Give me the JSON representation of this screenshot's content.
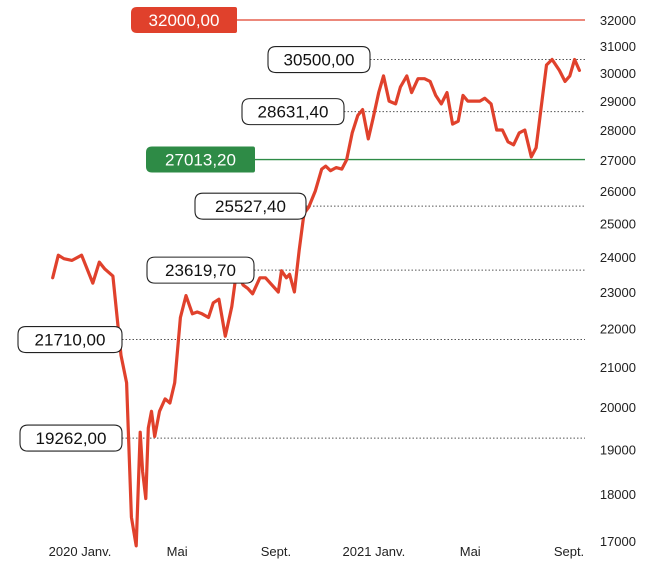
{
  "chart_data": {
    "type": "line",
    "title": "",
    "xlabel": "",
    "ylabel": "",
    "ylim": [
      16800,
      32200
    ],
    "y_scale": "log",
    "yticks": [
      17000,
      18000,
      19000,
      20000,
      21000,
      22000,
      23000,
      24000,
      25000,
      26000,
      27000,
      28000,
      29000,
      30000,
      31000,
      32000
    ],
    "ytick_labels": [
      "17000",
      "18000",
      "19000",
      "20000",
      "21000",
      "22000",
      "23000",
      "24000",
      "25000",
      "26000",
      "27000",
      "28000",
      "29000",
      "30000",
      "31000",
      "32000"
    ],
    "xlim": [
      "2019-11-25",
      "2021-09-21"
    ],
    "xticks": [
      {
        "date": "2020-01-01",
        "label": "2020 Janv."
      },
      {
        "date": "2020-05-01",
        "label": "Mai"
      },
      {
        "date": "2020-09-01",
        "label": "Sept."
      },
      {
        "date": "2021-01-01",
        "label": "2021 Janv."
      },
      {
        "date": "2021-05-01",
        "label": "Mai"
      },
      {
        "date": "2021-09-01",
        "label": "Sept."
      }
    ],
    "series": [
      {
        "name": "",
        "color": "#e0412c",
        "x": [
          "2019-11-28",
          "2019-12-05",
          "2019-12-12",
          "2019-12-22",
          "2020-01-03",
          "2020-01-17",
          "2020-01-25",
          "2020-02-01",
          "2020-02-11",
          "2020-02-21",
          "2020-02-28",
          "2020-03-05",
          "2020-03-11",
          "2020-03-16",
          "2020-03-19",
          "2020-03-23",
          "2020-03-26",
          "2020-03-30",
          "2020-04-03",
          "2020-04-09",
          "2020-04-16",
          "2020-04-22",
          "2020-04-28",
          "2020-05-05",
          "2020-05-12",
          "2020-05-20",
          "2020-05-26",
          "2020-06-01",
          "2020-06-09",
          "2020-06-15",
          "2020-06-22",
          "2020-06-30",
          "2020-07-08",
          "2020-07-14",
          "2020-07-22",
          "2020-07-28",
          "2020-08-03",
          "2020-08-12",
          "2020-08-19",
          "2020-08-27",
          "2020-09-04",
          "2020-09-08",
          "2020-09-14",
          "2020-09-18",
          "2020-09-24",
          "2020-09-30",
          "2020-10-06",
          "2020-10-12",
          "2020-10-20",
          "2020-10-28",
          "2020-11-02",
          "2020-11-08",
          "2020-11-15",
          "2020-11-22",
          "2020-11-28",
          "2020-12-05",
          "2020-12-12",
          "2020-12-18",
          "2020-12-25",
          "2020-12-31",
          "2021-01-07",
          "2021-01-13",
          "2021-01-20",
          "2021-01-28",
          "2021-02-03",
          "2021-02-11",
          "2021-02-17",
          "2021-02-25",
          "2021-03-05",
          "2021-03-12",
          "2021-03-19",
          "2021-03-26",
          "2021-04-02",
          "2021-04-09",
          "2021-04-16",
          "2021-04-22",
          "2021-04-28",
          "2021-05-07",
          "2021-05-13",
          "2021-05-19",
          "2021-05-27",
          "2021-06-03",
          "2021-06-10",
          "2021-06-17",
          "2021-06-24",
          "2021-07-01",
          "2021-07-08",
          "2021-07-16",
          "2021-07-22",
          "2021-07-28",
          "2021-08-04",
          "2021-08-11",
          "2021-08-20",
          "2021-08-27",
          "2021-09-02",
          "2021-09-08",
          "2021-09-14"
        ],
        "y": [
          23400,
          24050,
          23950,
          23900,
          24050,
          23250,
          23850,
          23650,
          23450,
          21300,
          20600,
          17500,
          16900,
          19400,
          18500,
          17900,
          19500,
          19900,
          19300,
          19900,
          20200,
          20100,
          20600,
          22300,
          22900,
          22400,
          22450,
          22400,
          22300,
          22700,
          22800,
          21800,
          22600,
          23600,
          23200,
          23100,
          22950,
          23400,
          23400,
          23200,
          23000,
          23600,
          23400,
          23500,
          23000,
          24200,
          25300,
          25500,
          26000,
          26700,
          26800,
          26650,
          26750,
          26700,
          27000,
          27900,
          28500,
          28700,
          27700,
          28400,
          29300,
          29900,
          29000,
          28900,
          29500,
          29900,
          29300,
          29800,
          29800,
          29700,
          29200,
          28900,
          29300,
          28200,
          28300,
          29200,
          29000,
          29000,
          29000,
          29100,
          28900,
          28000,
          28000,
          27600,
          27500,
          27900,
          28000,
          27100,
          27400,
          28700,
          30300,
          30500,
          30100,
          29700,
          29900,
          30500,
          30100
        ]
      }
    ],
    "reference_lines": [
      {
        "value": 32000,
        "label": "32000,00",
        "style": "solid",
        "color": "#e0412c"
      },
      {
        "value": 27013.2,
        "label": "27013,20",
        "style": "solid",
        "color": "#2e8b46"
      }
    ],
    "annotations": [
      {
        "value": 30500,
        "label": "30500,00"
      },
      {
        "value": 28631.4,
        "label": "28631,40"
      },
      {
        "value": 25527.4,
        "label": "25527,40"
      },
      {
        "value": 23619.7,
        "label": "23619,70"
      },
      {
        "value": 21710,
        "label": "21710,00"
      },
      {
        "value": 19262,
        "label": "19262,00"
      }
    ],
    "grid": false,
    "legend": "none"
  }
}
